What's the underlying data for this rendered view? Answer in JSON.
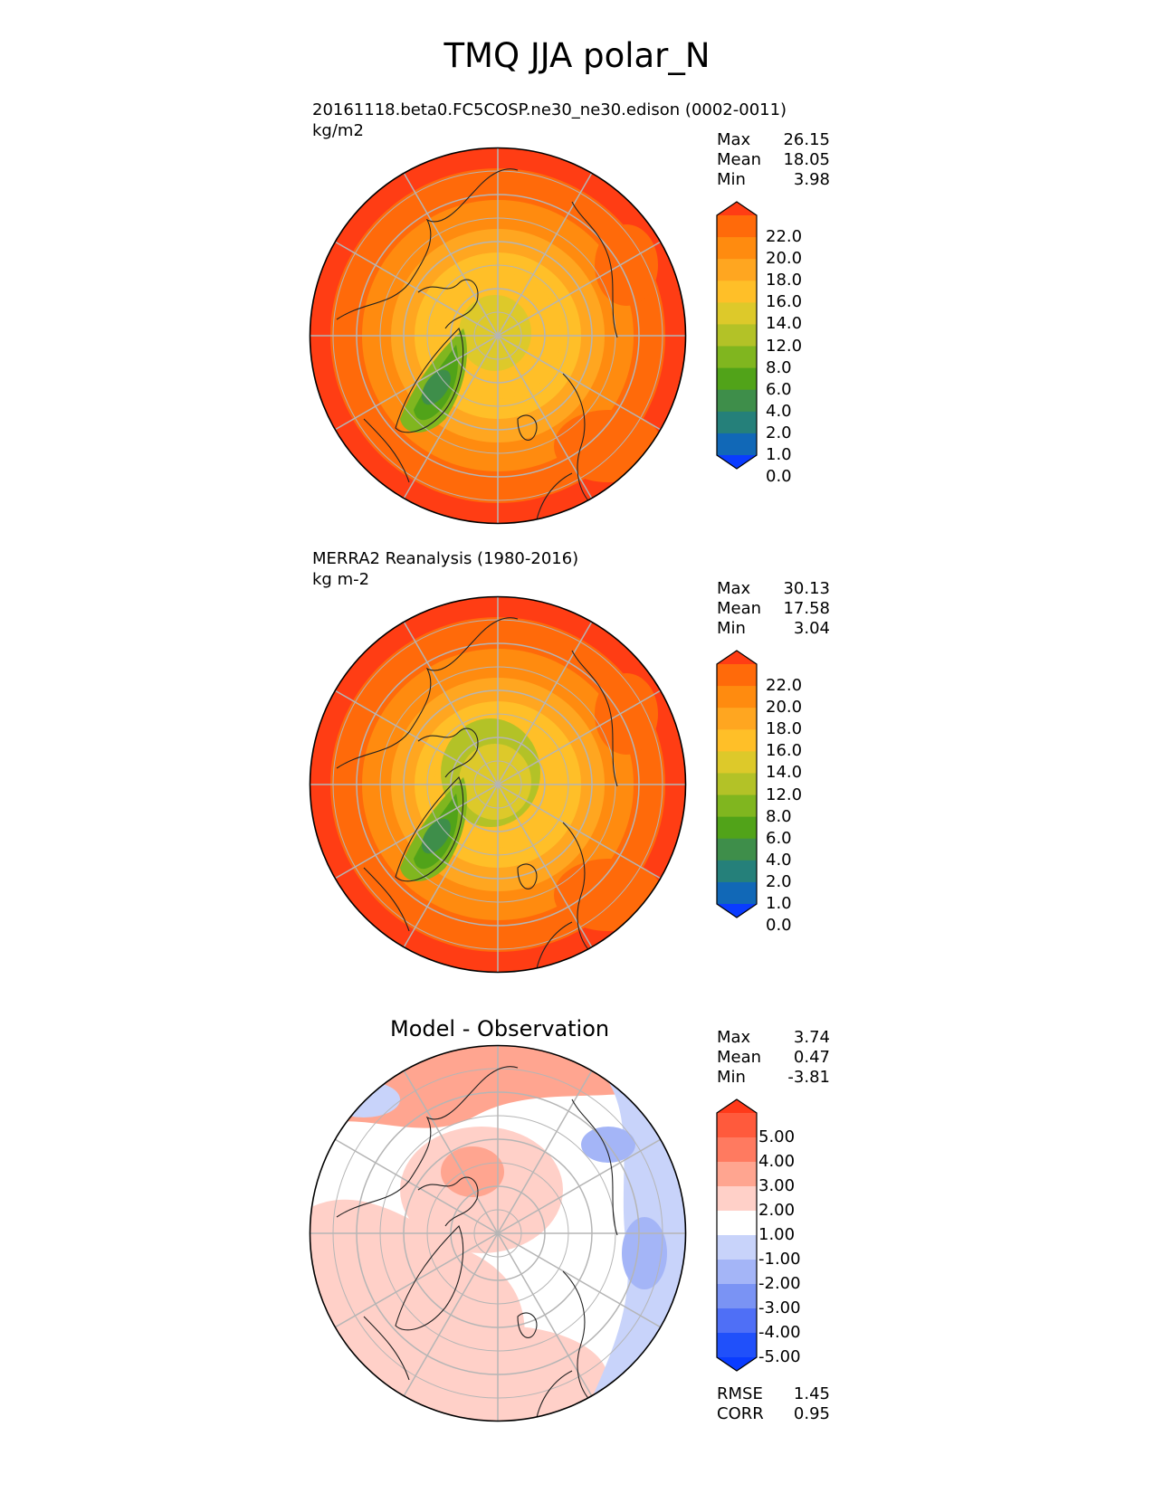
{
  "title": "TMQ JJA polar_N",
  "panels": [
    {
      "id": "test",
      "subtitle": "20161118.beta0.FC5COSP.ne30_ne30.edison (0002-0011)",
      "units": "kg/m2",
      "stats": [
        {
          "label": "Max",
          "value": "26.15"
        },
        {
          "label": "Mean",
          "value": "18.05"
        },
        {
          "label": "Min",
          "value": "3.98"
        }
      ],
      "colorbar": {
        "ticks": [
          "22.0",
          "20.0",
          "18.0",
          "16.0",
          "14.0",
          "12.0",
          "8.0",
          "6.0",
          "4.0",
          "2.0",
          "1.0",
          "0.0"
        ],
        "colors": [
          "#ff3d14",
          "#ff6a0a",
          "#ff8b0f",
          "#ffa620",
          "#ffbf28",
          "#ddc92a",
          "#b3c227",
          "#80b61f",
          "#51a319",
          "#3e8e4a",
          "#25807a",
          "#1168b7",
          "#0a3cff"
        ]
      }
    },
    {
      "id": "reference",
      "subtitle": "MERRA2 Reanalysis (1980-2016)",
      "units": "kg m-2",
      "stats": [
        {
          "label": "Max",
          "value": "30.13"
        },
        {
          "label": "Mean",
          "value": "17.58"
        },
        {
          "label": "Min",
          "value": "3.04"
        }
      ],
      "colorbar": {
        "ticks": [
          "22.0",
          "20.0",
          "18.0",
          "16.0",
          "14.0",
          "12.0",
          "8.0",
          "6.0",
          "4.0",
          "2.0",
          "1.0",
          "0.0"
        ],
        "colors": [
          "#ff3d14",
          "#ff6a0a",
          "#ff8b0f",
          "#ffa620",
          "#ffbf28",
          "#ddc92a",
          "#b3c227",
          "#80b61f",
          "#51a319",
          "#3e8e4a",
          "#25807a",
          "#1168b7",
          "#0a3cff"
        ]
      }
    },
    {
      "id": "difference",
      "title": "Model - Observation",
      "stats": [
        {
          "label": "Max",
          "value": "3.74"
        },
        {
          "label": "Mean",
          "value": "0.47"
        },
        {
          "label": "Min",
          "value": "-3.81"
        }
      ],
      "colorbar": {
        "ticks": [
          "5.00",
          "4.00",
          "3.00",
          "2.00",
          "1.00",
          "-1.00",
          "-2.00",
          "-3.00",
          "-4.00",
          "-5.00"
        ],
        "colors": [
          "#ff3a1a",
          "#ff5a3c",
          "#ff7a60",
          "#ffa590",
          "#ffd0c8",
          "#ffffff",
          "#c8d3fa",
          "#a4b5f7",
          "#7a93f4",
          "#4f6ff6",
          "#2050fa",
          "#0a3cff"
        ]
      },
      "metrics": [
        {
          "label": "RMSE",
          "value": "1.45"
        },
        {
          "label": "CORR",
          "value": "0.95"
        }
      ]
    }
  ]
}
